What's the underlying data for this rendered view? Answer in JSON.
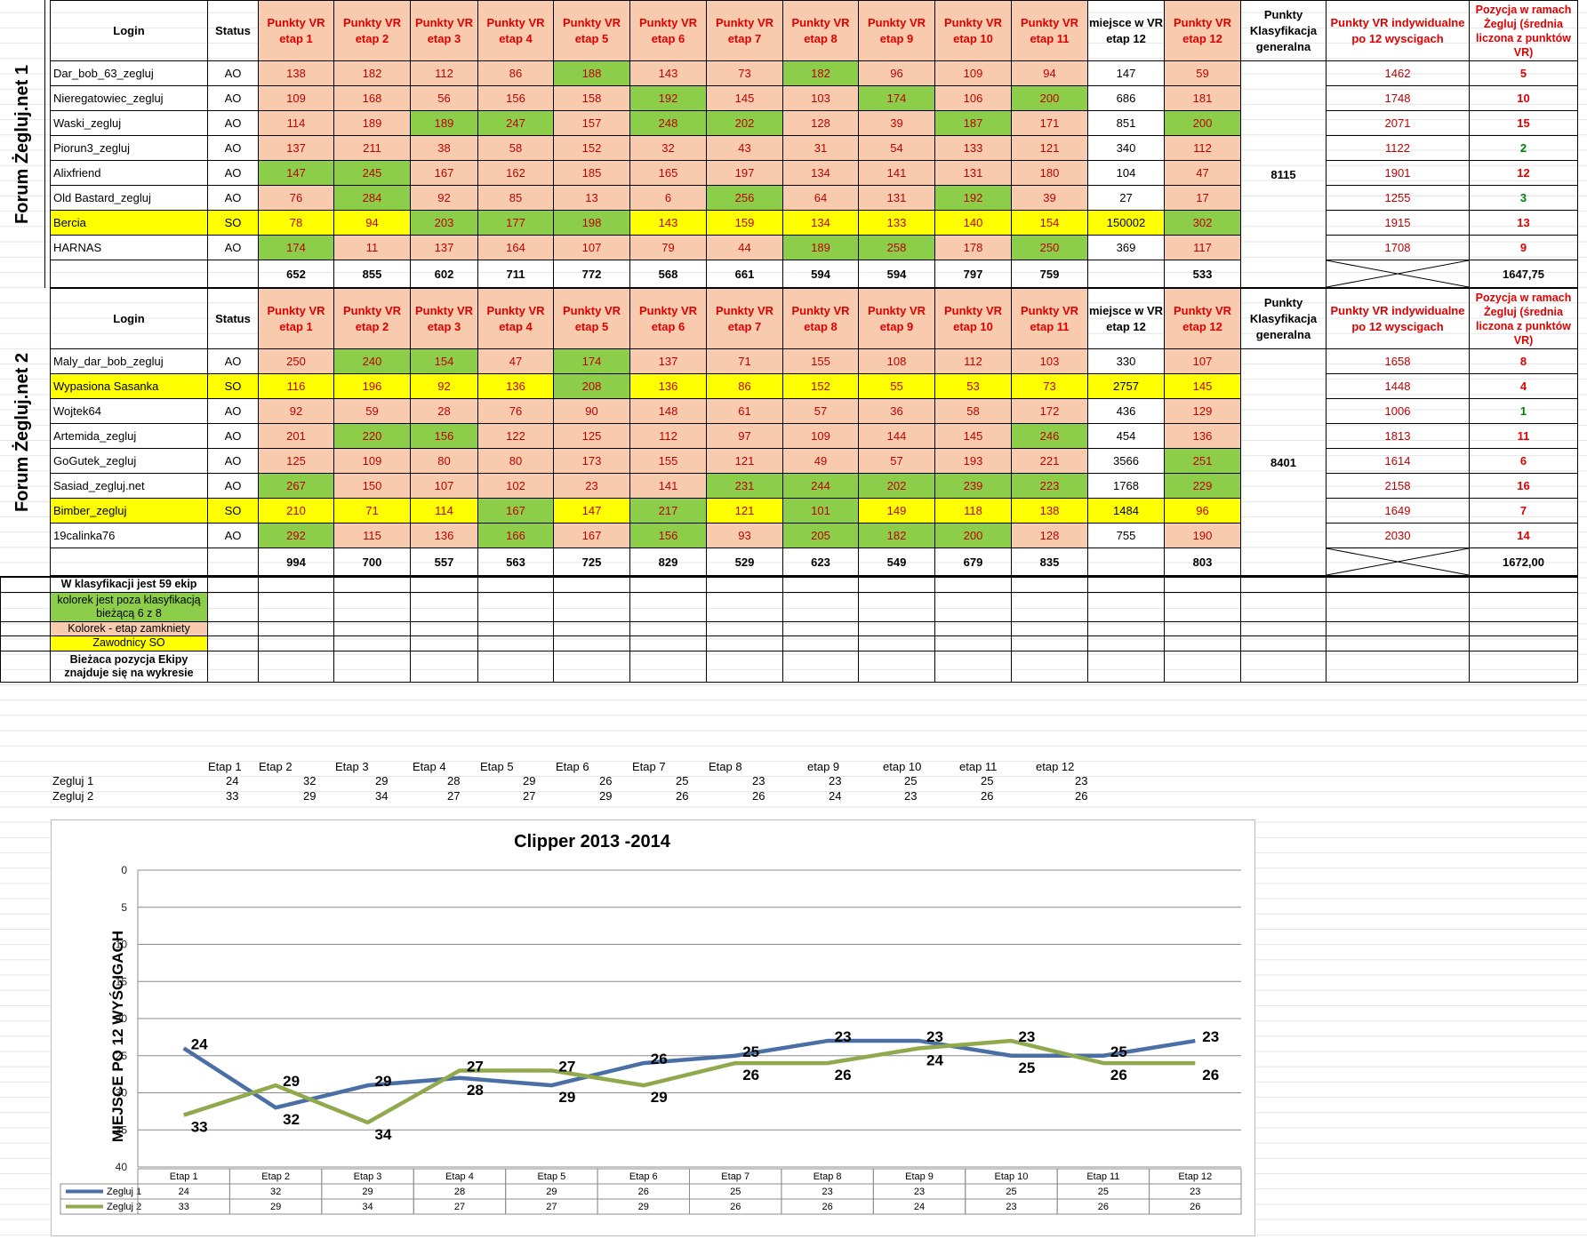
{
  "headers": {
    "login": "Login",
    "status": "Status",
    "stage_headers": [
      "Punkty VR etap 1",
      "Punkty VR etap 2",
      "Punkty VR etap 3",
      "Punkty VR etap 4",
      "Punkty VR etap 5",
      "Punkty VR etap 6",
      "Punkty VR etap 7",
      "Punkty VR etap 8",
      "Punkty VR etap 9",
      "Punkty VR etap 10",
      "Punkty VR etap 11"
    ],
    "place12": "miejsce w VR etap 12",
    "stage12": "Punkty VR etap 12",
    "general": "Punkty Klasyfikacja generalna",
    "individual": "Punkty VR indywidualne po 12 wyscigach",
    "position": "Pozycja w ramach Żegluj (średnia liczona z punktów VR)"
  },
  "team1": {
    "side_label": "Forum Żegluj.net 1",
    "general_points": "8115",
    "totals": [
      "652",
      "855",
      "602",
      "711",
      "772",
      "568",
      "661",
      "594",
      "594",
      "797",
      "759",
      "",
      "533"
    ],
    "average": "1647,75",
    "rows": [
      {
        "login": "Dar_bob_63_zegluj",
        "status": "AO",
        "vals": [
          "138",
          "182",
          "112",
          "86",
          "188",
          "143",
          "73",
          "182",
          "96",
          "109",
          "94",
          "147",
          "59"
        ],
        "fills": [
          "p",
          "p",
          "p",
          "p",
          "g",
          "p",
          "p",
          "g",
          "p",
          "p",
          "p",
          "w",
          "p"
        ],
        "indiv": "1462",
        "pos": "5",
        "posColor": "red",
        "rowColor": "w"
      },
      {
        "login": "Nieregatowiec_zegluj",
        "status": "AO",
        "vals": [
          "109",
          "168",
          "56",
          "156",
          "158",
          "192",
          "145",
          "103",
          "174",
          "106",
          "200",
          "686",
          "181"
        ],
        "fills": [
          "p",
          "p",
          "p",
          "p",
          "p",
          "g",
          "p",
          "p",
          "g",
          "p",
          "g",
          "w",
          "p"
        ],
        "indiv": "1748",
        "pos": "10",
        "posColor": "red",
        "rowColor": "w"
      },
      {
        "login": "Waski_zegluj",
        "status": "AO",
        "vals": [
          "114",
          "189",
          "189",
          "247",
          "157",
          "248",
          "202",
          "128",
          "39",
          "187",
          "171",
          "851",
          "200"
        ],
        "fills": [
          "p",
          "p",
          "g",
          "g",
          "p",
          "g",
          "g",
          "p",
          "p",
          "g",
          "p",
          "w",
          "g"
        ],
        "indiv": "2071",
        "pos": "15",
        "posColor": "red",
        "rowColor": "w"
      },
      {
        "login": "Piorun3_zegluj",
        "status": "AO",
        "vals": [
          "137",
          "211",
          "38",
          "58",
          "152",
          "32",
          "43",
          "31",
          "54",
          "133",
          "121",
          "340",
          "112"
        ],
        "fills": [
          "p",
          "p",
          "p",
          "p",
          "p",
          "p",
          "p",
          "p",
          "p",
          "p",
          "p",
          "w",
          "p"
        ],
        "indiv": "1122",
        "pos": "2",
        "posColor": "green",
        "rowColor": "w"
      },
      {
        "login": "Alixfriend",
        "status": "AO",
        "vals": [
          "147",
          "245",
          "167",
          "162",
          "185",
          "165",
          "197",
          "134",
          "141",
          "131",
          "180",
          "104",
          "47"
        ],
        "fills": [
          "g",
          "g",
          "p",
          "p",
          "p",
          "p",
          "p",
          "p",
          "p",
          "p",
          "p",
          "w",
          "p"
        ],
        "indiv": "1901",
        "pos": "12",
        "posColor": "red",
        "rowColor": "w"
      },
      {
        "login": "Old Bastard_zegluj",
        "status": "AO",
        "vals": [
          "76",
          "284",
          "92",
          "85",
          "13",
          "6",
          "256",
          "64",
          "131",
          "192",
          "39",
          "27",
          "17"
        ],
        "fills": [
          "p",
          "g",
          "p",
          "p",
          "p",
          "p",
          "g",
          "p",
          "p",
          "g",
          "p",
          "w",
          "p"
        ],
        "indiv": "1255",
        "pos": "3",
        "posColor": "green",
        "rowColor": "w"
      },
      {
        "login": "Bercia",
        "status": "SO",
        "vals": [
          "78",
          "94",
          "203",
          "177",
          "198",
          "143",
          "159",
          "134",
          "133",
          "140",
          "154",
          "150002",
          "302"
        ],
        "fills": [
          "y",
          "y",
          "g",
          "g",
          "g",
          "y",
          "y",
          "y",
          "y",
          "y",
          "y",
          "y",
          "g"
        ],
        "indiv": "1915",
        "pos": "13",
        "posColor": "red",
        "rowColor": "y"
      },
      {
        "login": "HARNAS",
        "status": "AO",
        "vals": [
          "174",
          "11",
          "137",
          "164",
          "107",
          "79",
          "44",
          "189",
          "258",
          "178",
          "250",
          "369",
          "117"
        ],
        "fills": [
          "g",
          "p",
          "p",
          "p",
          "p",
          "p",
          "p",
          "g",
          "g",
          "p",
          "g",
          "w",
          "p"
        ],
        "indiv": "1708",
        "pos": "9",
        "posColor": "red",
        "rowColor": "w"
      }
    ]
  },
  "team2": {
    "side_label": "Forum Żegluj.net 2",
    "general_points": "8401",
    "totals": [
      "994",
      "700",
      "557",
      "563",
      "725",
      "829",
      "529",
      "623",
      "549",
      "679",
      "835",
      "",
      "803"
    ],
    "average": "1672,00",
    "rows": [
      {
        "login": "Maly_dar_bob_zegluj",
        "status": "AO",
        "vals": [
          "250",
          "240",
          "154",
          "47",
          "174",
          "137",
          "71",
          "155",
          "108",
          "112",
          "103",
          "330",
          "107"
        ],
        "fills": [
          "p",
          "g",
          "g",
          "p",
          "g",
          "p",
          "p",
          "p",
          "p",
          "p",
          "p",
          "w",
          "p"
        ],
        "indiv": "1658",
        "pos": "8",
        "posColor": "red",
        "rowColor": "w"
      },
      {
        "login": "Wypasiona Sasanka",
        "status": "SO",
        "vals": [
          "116",
          "196",
          "92",
          "136",
          "208",
          "136",
          "86",
          "152",
          "55",
          "53",
          "73",
          "2757",
          "145"
        ],
        "fills": [
          "y",
          "y",
          "y",
          "y",
          "g",
          "y",
          "y",
          "y",
          "y",
          "y",
          "y",
          "y",
          "y"
        ],
        "indiv": "1448",
        "pos": "4",
        "posColor": "red",
        "rowColor": "y"
      },
      {
        "login": "Wojtek64",
        "status": "AO",
        "vals": [
          "92",
          "59",
          "28",
          "76",
          "90",
          "148",
          "61",
          "57",
          "36",
          "58",
          "172",
          "436",
          "129"
        ],
        "fills": [
          "p",
          "p",
          "p",
          "p",
          "p",
          "p",
          "p",
          "p",
          "p",
          "p",
          "p",
          "w",
          "p"
        ],
        "indiv": "1006",
        "pos": "1",
        "posColor": "green",
        "rowColor": "w"
      },
      {
        "login": "Artemida_zegluj",
        "status": "AO",
        "vals": [
          "201",
          "220",
          "156",
          "122",
          "125",
          "112",
          "97",
          "109",
          "144",
          "145",
          "246",
          "454",
          "136"
        ],
        "fills": [
          "p",
          "g",
          "g",
          "p",
          "p",
          "p",
          "p",
          "p",
          "p",
          "p",
          "g",
          "w",
          "p"
        ],
        "indiv": "1813",
        "pos": "11",
        "posColor": "red",
        "rowColor": "w"
      },
      {
        "login": "GoGutek_zegluj",
        "status": "AO",
        "vals": [
          "125",
          "109",
          "80",
          "80",
          "173",
          "155",
          "121",
          "49",
          "57",
          "193",
          "221",
          "3566",
          "251"
        ],
        "fills": [
          "p",
          "p",
          "p",
          "p",
          "p",
          "p",
          "p",
          "p",
          "p",
          "p",
          "p",
          "w",
          "g"
        ],
        "indiv": "1614",
        "pos": "6",
        "posColor": "red",
        "rowColor": "w"
      },
      {
        "login": "Sasiad_zegluj.net",
        "status": "AO",
        "vals": [
          "267",
          "150",
          "107",
          "102",
          "23",
          "141",
          "231",
          "244",
          "202",
          "239",
          "223",
          "1768",
          "229"
        ],
        "fills": [
          "g",
          "p",
          "p",
          "p",
          "p",
          "p",
          "g",
          "g",
          "g",
          "g",
          "g",
          "w",
          "g"
        ],
        "indiv": "2158",
        "pos": "16",
        "posColor": "red",
        "rowColor": "w"
      },
      {
        "login": "Bimber_zegluj",
        "status": "SO",
        "vals": [
          "210",
          "71",
          "114",
          "167",
          "147",
          "217",
          "121",
          "101",
          "149",
          "118",
          "138",
          "1484",
          "96"
        ],
        "fills": [
          "y",
          "y",
          "y",
          "g",
          "y",
          "g",
          "y",
          "g",
          "y",
          "y",
          "y",
          "y",
          "y"
        ],
        "indiv": "1649",
        "pos": "7",
        "posColor": "red",
        "rowColor": "y"
      },
      {
        "login": "19calinka76",
        "status": "AO",
        "vals": [
          "292",
          "115",
          "136",
          "166",
          "167",
          "156",
          "93",
          "205",
          "182",
          "200",
          "128",
          "755",
          "190"
        ],
        "fills": [
          "g",
          "p",
          "p",
          "g",
          "p",
          "g",
          "p",
          "g",
          "g",
          "g",
          "p",
          "w",
          "p"
        ],
        "indiv": "2030",
        "pos": "14",
        "posColor": "red",
        "rowColor": "w"
      }
    ]
  },
  "legend": {
    "klasyfikacja": "W klasyfikacji jest 59 ekip",
    "green_note": "kolorek jest  poza klasyfikacją bieżącą 6 z 8",
    "peach_note": "Kolorek - etap zamkniety",
    "yellow_note": "Zawodnicy SO",
    "position_note": "Bieżaca pozycja Ekipy znajduje się na wykresie"
  },
  "summary": {
    "stage_labels": [
      "Etap 1",
      "Etap 2",
      "Etap 3",
      "Etap 4",
      "Etap 5",
      "Etap 6",
      "Etap 7",
      "Etap 8",
      "etap 9",
      "etap 10",
      "etap 11",
      "etap 12"
    ],
    "rows": [
      {
        "name": "Zegluj 1",
        "vals": [
          "24",
          "32",
          "29",
          "28",
          "29",
          "26",
          "25",
          "23",
          "23",
          "25",
          "25",
          "23"
        ]
      },
      {
        "name": "Zegluj 2",
        "vals": [
          "33",
          "29",
          "34",
          "27",
          "27",
          "29",
          "26",
          "26",
          "24",
          "23",
          "26",
          "26"
        ]
      }
    ]
  },
  "chart_data": {
    "type": "line",
    "title": "Clipper 2013 -2014",
    "xlabel": "",
    "ylabel": "MIEJSCE  PO 12  WYŚCIGACH",
    "categories": [
      "Etap 1",
      "Etap 2",
      "Etap 3",
      "Etap 4",
      "Etap 5",
      "Etap 6",
      "Etap 7",
      "Etap 8",
      "Etap 9",
      "Etap 10",
      "Etap 11",
      "Etap 12"
    ],
    "y_ticks": [
      "0",
      "5",
      "10",
      "15",
      "20",
      "25",
      "30",
      "35",
      "40"
    ],
    "ylim": [
      0,
      40
    ],
    "y_inverted": true,
    "grid": true,
    "legend": "data-table-below",
    "series": [
      {
        "name": "Zegluj 1",
        "color": "#4a6fa5",
        "values": [
          24,
          32,
          29,
          28,
          29,
          26,
          25,
          23,
          23,
          25,
          25,
          23
        ]
      },
      {
        "name": "Zegluj 2",
        "color": "#8fa94c",
        "values": [
          33,
          29,
          34,
          27,
          27,
          29,
          26,
          26,
          24,
          23,
          26,
          26
        ]
      }
    ]
  }
}
